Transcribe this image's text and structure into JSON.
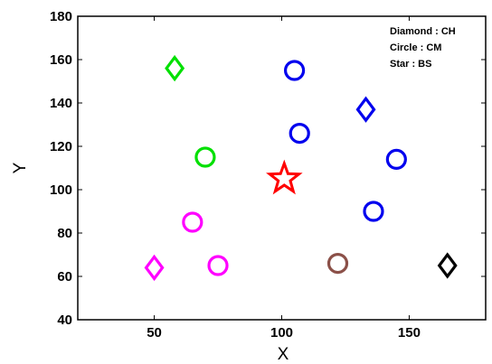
{
  "chart_data": {
    "type": "scatter",
    "title": "",
    "xlabel": "X",
    "ylabel": "Y",
    "xlim": [
      20,
      180
    ],
    "ylim": [
      40,
      180
    ],
    "xticks": [
      50,
      100,
      150
    ],
    "yticks": [
      40,
      60,
      80,
      100,
      120,
      140,
      160,
      180
    ],
    "grid": false,
    "legend_text": [
      "Diamond : CH",
      "Circle : CM",
      "Star : BS"
    ],
    "legend_position": "top-right",
    "points": [
      {
        "marker": "diamond",
        "color": "#00e000",
        "x": 58,
        "y": 156
      },
      {
        "marker": "circle",
        "color": "#00e000",
        "x": 70,
        "y": 115
      },
      {
        "marker": "circle",
        "color": "#ff00ff",
        "x": 65,
        "y": 85
      },
      {
        "marker": "circle",
        "color": "#ff00ff",
        "x": 75,
        "y": 65
      },
      {
        "marker": "diamond",
        "color": "#ff00ff",
        "x": 50,
        "y": 64
      },
      {
        "marker": "star",
        "color": "#ff0000",
        "x": 101,
        "y": 105
      },
      {
        "marker": "circle",
        "color": "#0000ee",
        "x": 105,
        "y": 155
      },
      {
        "marker": "circle",
        "color": "#0000ee",
        "x": 107,
        "y": 126
      },
      {
        "marker": "diamond",
        "color": "#0000ee",
        "x": 133,
        "y": 137
      },
      {
        "marker": "circle",
        "color": "#0000ee",
        "x": 145,
        "y": 114
      },
      {
        "marker": "circle",
        "color": "#0000ee",
        "x": 136,
        "y": 90
      },
      {
        "marker": "circle",
        "color": "#8b5048",
        "x": 122,
        "y": 66
      },
      {
        "marker": "diamond",
        "color": "#000000",
        "x": 165,
        "y": 65
      }
    ]
  }
}
